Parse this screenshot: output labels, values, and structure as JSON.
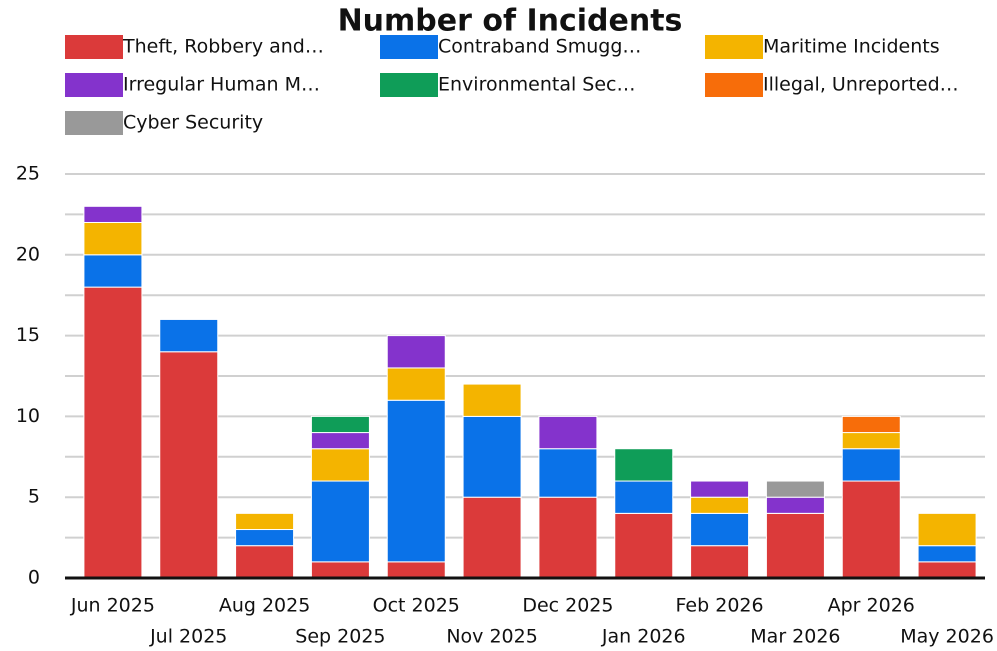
{
  "chart_data": {
    "type": "stacked_bar",
    "title": "Number of Incidents",
    "categories": [
      "Jun 2025",
      "Jul 2025",
      "Aug 2025",
      "Sep 2025",
      "Oct 2025",
      "Nov 2025",
      "Dec 2025",
      "Jan 2026",
      "Feb 2026",
      "Mar 2026",
      "Apr 2026",
      "May 2026"
    ],
    "series": [
      {
        "name": "Theft, Robbery and…",
        "color": "#db3a3a",
        "values": [
          18,
          14,
          2,
          1,
          1,
          5,
          5,
          4,
          2,
          4,
          6,
          1
        ]
      },
      {
        "name": "Contraband Smugg…",
        "color": "#0a72e8",
        "values": [
          2,
          2,
          1,
          5,
          10,
          5,
          3,
          2,
          2,
          0,
          2,
          1
        ]
      },
      {
        "name": "Maritime Incidents",
        "color": "#f4b400",
        "values": [
          2,
          0,
          1,
          2,
          2,
          2,
          0,
          0,
          1,
          0,
          1,
          2
        ]
      },
      {
        "name": "Irregular Human M…",
        "color": "#8433cc",
        "values": [
          1,
          0,
          0,
          1,
          2,
          0,
          2,
          0,
          1,
          1,
          0,
          0
        ]
      },
      {
        "name": "Environmental Sec…",
        "color": "#0f9d58",
        "values": [
          0,
          0,
          0,
          1,
          0,
          0,
          0,
          2,
          0,
          0,
          0,
          0
        ]
      },
      {
        "name": "Illegal, Unreported…",
        "color": "#f76d0a",
        "values": [
          0,
          0,
          0,
          0,
          0,
          0,
          0,
          0,
          0,
          0,
          1,
          0
        ]
      },
      {
        "name": "Cyber Security",
        "color": "#999999",
        "values": [
          0,
          0,
          0,
          0,
          0,
          0,
          0,
          0,
          0,
          1,
          0,
          0
        ]
      }
    ],
    "ylim": [
      0,
      25
    ],
    "yticks": [
      0,
      5,
      10,
      15,
      20,
      25
    ],
    "minor_yticks": [
      2.5,
      7.5,
      12.5,
      17.5,
      22.5
    ],
    "grid": true
  }
}
